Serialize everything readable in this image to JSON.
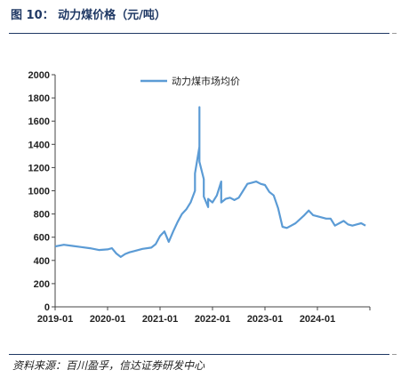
{
  "figure": {
    "title": "图 10：  动力煤价格（元/吨）",
    "source": "资料来源：百川盈孚，信达证券研发中心"
  },
  "colors": {
    "series": "#5b9bd5",
    "rule": "#1f3864",
    "axis": "#444444"
  },
  "chart_data": {
    "type": "line",
    "title": "",
    "xlabel": "",
    "ylabel": "",
    "ylim": [
      0,
      2000
    ],
    "yticks": [
      "0",
      "200",
      "400",
      "600",
      "800",
      "1000",
      "1200",
      "1400",
      "1600",
      "1800",
      "2000"
    ],
    "xlim": [
      "2019-01",
      "2025-01"
    ],
    "xticks": [
      "2019-01",
      "2020-01",
      "2021-01",
      "2022-01",
      "2023-01",
      "2024-01"
    ],
    "grid": false,
    "legend": "top-center",
    "series": [
      {
        "name": "动力煤市场均价",
        "x": [
          "2019-01",
          "2019-03",
          "2019-05",
          "2019-07",
          "2019-09",
          "2019-11",
          "2020-01",
          "2020-02",
          "2020-03",
          "2020-04",
          "2020-05",
          "2020-06",
          "2020-07",
          "2020-09",
          "2020-11",
          "2020-12",
          "2021-01",
          "2021-02",
          "2021-03",
          "2021-04",
          "2021-05",
          "2021-06",
          "2021-07",
          "2021-08",
          "2021-09",
          "2021-09",
          "2021-10",
          "2021-10",
          "2021-10",
          "2021-11",
          "2021-11",
          "2021-12",
          "2021-12",
          "2022-01",
          "2022-02",
          "2022-03",
          "2022-03",
          "2022-04",
          "2022-05",
          "2022-06",
          "2022-07",
          "2022-08",
          "2022-09",
          "2022-10",
          "2022-11",
          "2022-12",
          "2023-01",
          "2023-02",
          "2023-03",
          "2023-04",
          "2023-05",
          "2023-06",
          "2023-07",
          "2023-08",
          "2023-10",
          "2023-11",
          "2023-12",
          "2024-01",
          "2024-03",
          "2024-04",
          "2024-05",
          "2024-06",
          "2024-07",
          "2024-08",
          "2024-09",
          "2024-10",
          "2024-11",
          "2024-12"
        ],
        "values": [
          520,
          535,
          525,
          515,
          505,
          490,
          495,
          505,
          460,
          430,
          455,
          470,
          480,
          500,
          510,
          540,
          610,
          650,
          560,
          650,
          730,
          800,
          840,
          900,
          1000,
          1150,
          1380,
          1720,
          1250,
          1100,
          950,
          860,
          930,
          900,
          960,
          1080,
          900,
          930,
          940,
          920,
          940,
          1000,
          1060,
          1070,
          1080,
          1060,
          1050,
          990,
          960,
          850,
          690,
          680,
          700,
          720,
          790,
          830,
          790,
          780,
          760,
          760,
          700,
          720,
          740,
          710,
          700,
          710,
          720,
          700
        ]
      }
    ]
  }
}
